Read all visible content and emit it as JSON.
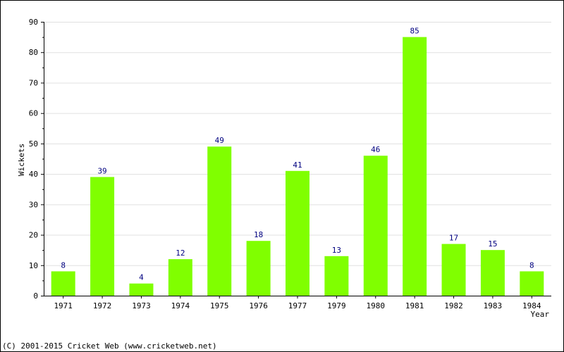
{
  "chart_data": {
    "type": "bar",
    "categories": [
      "1971",
      "1972",
      "1973",
      "1974",
      "1975",
      "1976",
      "1977",
      "1979",
      "1980",
      "1981",
      "1982",
      "1983",
      "1984"
    ],
    "values": [
      8,
      39,
      4,
      12,
      49,
      18,
      41,
      13,
      46,
      85,
      17,
      15,
      8
    ],
    "title": "",
    "xlabel": "Year",
    "ylabel": "Wickets",
    "ylim": [
      0,
      90
    ],
    "yticks": [
      0,
      10,
      20,
      30,
      40,
      50,
      60,
      70,
      80,
      90
    ],
    "grid": true,
    "bar_color": "#80ff00",
    "label_color": "#000080"
  },
  "footer": {
    "credit": "(C) 2001-2015 Cricket Web (www.cricketweb.net)"
  }
}
